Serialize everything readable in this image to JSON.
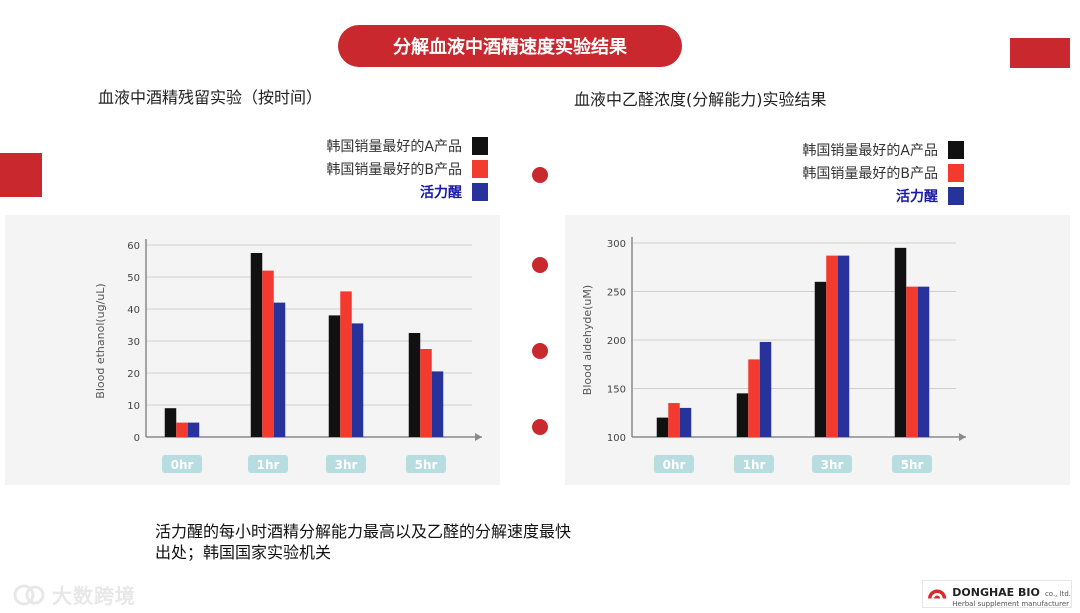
{
  "slide": {
    "title": "分解血液中酒精速度实验结果",
    "left_heading": "血液中酒精残留实验（按时间）",
    "right_heading": "血液中乙醛浓度(分解能力)实验结果",
    "conclusion_line1": "活力醒的每小时酒精分解能力最高以及乙醛的分解速度最快",
    "conclusion_line2": "出处；韩国国家实验机关",
    "watermark": "大数跨境",
    "logo": {
      "name": "DONGHAE BIO",
      "suffix": "co., ltd.",
      "tagline": "Herbal supplement manufacturer"
    }
  },
  "legend": [
    {
      "label": "韩国销量最好的A产品",
      "color": "#111111"
    },
    {
      "label": "韩国销量最好的B产品",
      "color": "#f23b2e"
    },
    {
      "label": "活力醒",
      "color": "#27329a"
    }
  ],
  "colors": {
    "accent": "#c8282e",
    "axis": "#8a8a8a",
    "tick_label_bg": "#b7dde0"
  },
  "chart_data": [
    {
      "type": "bar",
      "categories": [
        "0hr",
        "1hr",
        "3hr",
        "5hr"
      ],
      "ylabel": "Blood ethanol(ug/uL)",
      "ylim": [
        0,
        60
      ],
      "yticks": [
        0,
        10,
        20,
        30,
        40,
        50,
        60
      ],
      "grid": true,
      "series": [
        {
          "name": "韩国销量最好的A产品",
          "values": [
            9,
            57.5,
            38,
            32.5
          ]
        },
        {
          "name": "韩国销量最好的B产品",
          "values": [
            4.5,
            52,
            45.5,
            27.5
          ]
        },
        {
          "name": "活力醒",
          "values": [
            4.5,
            42,
            35.5,
            20.5
          ]
        }
      ]
    },
    {
      "type": "bar",
      "categories": [
        "0hr",
        "1hr",
        "3hr",
        "5hr"
      ],
      "ylabel": "Blood aldehyde(uM)",
      "ylim": [
        100,
        300
      ],
      "yticks": [
        100,
        150,
        200,
        250,
        300
      ],
      "grid": true,
      "series": [
        {
          "name": "韩国销量最好的A产品",
          "values": [
            120,
            145,
            260,
            295
          ]
        },
        {
          "name": "韩国销量最好的B产品",
          "values": [
            135,
            180,
            287,
            255
          ]
        },
        {
          "name": "活力醒",
          "values": [
            130,
            198,
            287,
            255
          ]
        }
      ]
    }
  ]
}
